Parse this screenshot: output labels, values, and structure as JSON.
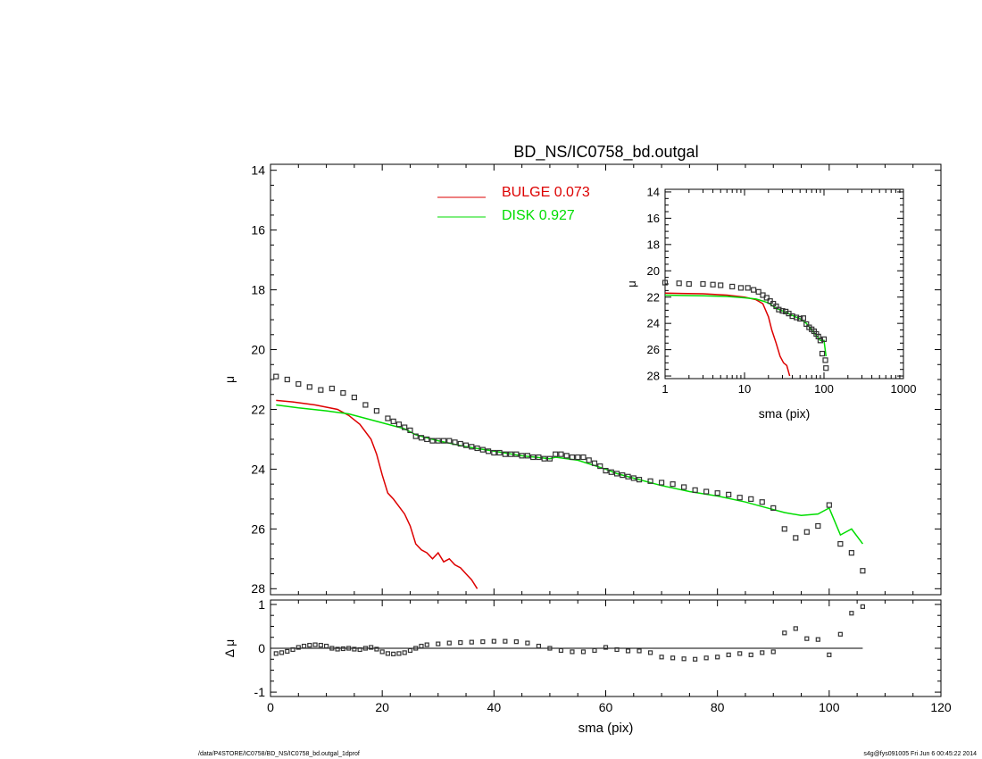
{
  "title": "BD_NS/IC0758_bd.outgal",
  "footer_left": "/data/P4STORE/IC0758/BD_NS/IC0758_bd.outgal_1dprof",
  "footer_right": "s4g@fys091005  Fri Jun  6 00:45:22 2014",
  "legend": {
    "bulge": "BULGE  0.073",
    "disk": "DISK  0.927"
  },
  "colors": {
    "bulge": "#dd0000",
    "disk": "#00dd00",
    "data": "#555555"
  },
  "chart_data": [
    {
      "id": "main",
      "type": "line",
      "xlabel": "sma (pix)",
      "ylabel": "μ",
      "xlim": [
        0,
        120
      ],
      "ylim": [
        28.2,
        13.8
      ],
      "y_inverted": true,
      "xticks": [
        0,
        20,
        40,
        60,
        80,
        100,
        120
      ],
      "yticks": [
        14,
        16,
        18,
        20,
        22,
        24,
        26,
        28
      ],
      "series": [
        {
          "name": "BULGE  0.073",
          "role": "bulge",
          "x": [
            1,
            4,
            8,
            12,
            14,
            16,
            18,
            19,
            20,
            21,
            22,
            24,
            25,
            26,
            27,
            28,
            29,
            30,
            31,
            32,
            33,
            34,
            35,
            36,
            37
          ],
          "y": [
            21.7,
            21.75,
            21.85,
            22.0,
            22.2,
            22.5,
            23.0,
            23.5,
            24.2,
            24.8,
            25.0,
            25.5,
            25.9,
            26.5,
            26.7,
            26.8,
            27.0,
            26.8,
            27.1,
            27.0,
            27.2,
            27.3,
            27.5,
            27.7,
            28.0
          ]
        },
        {
          "name": "DISK  0.927",
          "role": "disk",
          "x": [
            1,
            5,
            10,
            14,
            17,
            20,
            22,
            24,
            26,
            28,
            30,
            35,
            40,
            45,
            50,
            51,
            55,
            60,
            62,
            65,
            70,
            75,
            80,
            85,
            88,
            92,
            95,
            98,
            100,
            102,
            104,
            106
          ],
          "y": [
            21.85,
            21.95,
            22.05,
            22.15,
            22.3,
            22.45,
            22.55,
            22.65,
            22.85,
            22.95,
            23.05,
            23.25,
            23.4,
            23.55,
            23.65,
            23.6,
            23.7,
            24.0,
            24.15,
            24.3,
            24.55,
            24.75,
            24.9,
            25.1,
            25.25,
            25.45,
            25.55,
            25.5,
            25.3,
            26.2,
            26.0,
            26.5
          ]
        },
        {
          "name": "",
          "role": "data",
          "x": [
            1,
            3,
            5,
            7,
            9,
            11,
            13,
            15,
            17,
            19,
            21,
            22,
            23,
            24,
            25,
            26,
            27,
            28,
            29,
            30,
            31,
            32,
            33,
            34,
            35,
            36,
            37,
            38,
            39,
            40,
            41,
            42,
            43,
            44,
            45,
            46,
            47,
            48,
            49,
            50,
            51,
            52,
            53,
            54,
            55,
            56,
            57,
            58,
            59,
            60,
            61,
            62,
            63,
            64,
            65,
            66,
            68,
            70,
            72,
            74,
            76,
            78,
            80,
            82,
            84,
            86,
            88,
            90,
            92,
            94,
            96,
            98,
            100,
            102,
            104,
            106
          ],
          "y": [
            20.9,
            21.0,
            21.15,
            21.25,
            21.35,
            21.3,
            21.45,
            21.6,
            21.85,
            22.05,
            22.3,
            22.4,
            22.5,
            22.6,
            22.7,
            22.9,
            22.95,
            23.0,
            23.05,
            23.05,
            23.05,
            23.05,
            23.1,
            23.15,
            23.2,
            23.25,
            23.3,
            23.35,
            23.4,
            23.45,
            23.45,
            23.5,
            23.5,
            23.5,
            23.55,
            23.55,
            23.6,
            23.6,
            23.65,
            23.65,
            23.5,
            23.5,
            23.55,
            23.6,
            23.6,
            23.6,
            23.7,
            23.8,
            23.9,
            24.05,
            24.1,
            24.15,
            24.2,
            24.25,
            24.3,
            24.35,
            24.4,
            24.45,
            24.5,
            24.6,
            24.7,
            24.75,
            24.8,
            24.85,
            24.95,
            25.0,
            25.1,
            25.3,
            26.0,
            26.3,
            26.1,
            25.9,
            25.2,
            26.5,
            26.8,
            27.4
          ]
        }
      ]
    },
    {
      "id": "residual",
      "type": "scatter",
      "xlabel": "sma (pix)",
      "ylabel": "Δ μ",
      "xlim": [
        0,
        120
      ],
      "ylim": [
        -1.1,
        1.1
      ],
      "xticks": [
        0,
        20,
        40,
        60,
        80,
        100,
        120
      ],
      "yticks": [
        -1,
        0,
        1
      ],
      "zero_line_to": 106,
      "series": [
        {
          "name": "",
          "role": "residual",
          "x": [
            1,
            2,
            3,
            4,
            5,
            6,
            7,
            8,
            9,
            10,
            11,
            12,
            13,
            14,
            15,
            16,
            17,
            18,
            19,
            20,
            21,
            22,
            23,
            24,
            25,
            26,
            27,
            28,
            30,
            32,
            34,
            36,
            38,
            40,
            42,
            44,
            46,
            48,
            50,
            52,
            54,
            56,
            58,
            60,
            62,
            64,
            66,
            68,
            70,
            72,
            74,
            76,
            78,
            80,
            82,
            84,
            86,
            88,
            90,
            92,
            94,
            96,
            98,
            100,
            102,
            104,
            106
          ],
          "y": [
            -0.12,
            -0.1,
            -0.07,
            -0.03,
            0.02,
            0.05,
            0.07,
            0.08,
            0.07,
            0.05,
            0.0,
            -0.02,
            -0.01,
            0.0,
            -0.02,
            -0.03,
            0.0,
            0.02,
            -0.02,
            -0.08,
            -0.12,
            -0.13,
            -0.12,
            -0.1,
            -0.05,
            0.0,
            0.05,
            0.08,
            0.1,
            0.12,
            0.13,
            0.14,
            0.15,
            0.16,
            0.16,
            0.15,
            0.12,
            0.05,
            0.0,
            -0.05,
            -0.08,
            -0.08,
            -0.05,
            0.02,
            -0.03,
            -0.06,
            -0.06,
            -0.1,
            -0.2,
            -0.22,
            -0.24,
            -0.25,
            -0.22,
            -0.2,
            -0.15,
            -0.12,
            -0.15,
            -0.1,
            -0.08,
            0.35,
            0.45,
            0.22,
            0.2,
            -0.15,
            0.32,
            0.8,
            0.95
          ]
        }
      ]
    },
    {
      "id": "inset",
      "type": "line",
      "xlabel": "sma (pix)",
      "ylabel": "μ",
      "xscale": "log",
      "xlim": [
        1,
        1000
      ],
      "ylim": [
        28.2,
        13.8
      ],
      "y_inverted": true,
      "xticks": [
        1,
        10,
        100,
        1000
      ],
      "yticks": [
        14,
        16,
        18,
        20,
        22,
        24,
        26,
        28
      ],
      "series": [
        {
          "name": "",
          "role": "bulge",
          "x": [
            1,
            3,
            6,
            10,
            14,
            17,
            20,
            22,
            25,
            28,
            31,
            34,
            37
          ],
          "y": [
            21.7,
            21.75,
            21.85,
            22.0,
            22.2,
            22.5,
            23.5,
            24.5,
            25.5,
            26.5,
            27.0,
            27.2,
            28.0
          ]
        },
        {
          "name": "",
          "role": "disk",
          "x": [
            1,
            3,
            6,
            10,
            14,
            17,
            20,
            25,
            30,
            40,
            50,
            60,
            70,
            80,
            90,
            100,
            106
          ],
          "y": [
            21.85,
            21.9,
            21.95,
            22.05,
            22.15,
            22.3,
            22.45,
            22.85,
            23.05,
            23.4,
            23.65,
            24.0,
            24.5,
            24.9,
            25.3,
            25.3,
            26.5
          ]
        },
        {
          "name": "",
          "role": "data",
          "x": [
            1,
            1.5,
            2,
            3,
            4,
            5,
            7,
            9,
            11,
            13,
            15,
            17,
            19,
            21,
            23,
            25,
            27,
            30,
            33,
            36,
            40,
            45,
            50,
            55,
            60,
            65,
            70,
            75,
            80,
            85,
            90,
            95,
            100,
            104,
            106
          ],
          "y": [
            20.9,
            20.95,
            21.0,
            21.0,
            21.05,
            21.1,
            21.2,
            21.3,
            21.3,
            21.45,
            21.6,
            21.85,
            22.05,
            22.3,
            22.5,
            22.7,
            22.95,
            23.05,
            23.1,
            23.25,
            23.45,
            23.55,
            23.65,
            23.6,
            24.05,
            24.3,
            24.45,
            24.6,
            24.8,
            25.0,
            25.3,
            26.3,
            25.2,
            26.8,
            27.4
          ]
        }
      ]
    }
  ]
}
